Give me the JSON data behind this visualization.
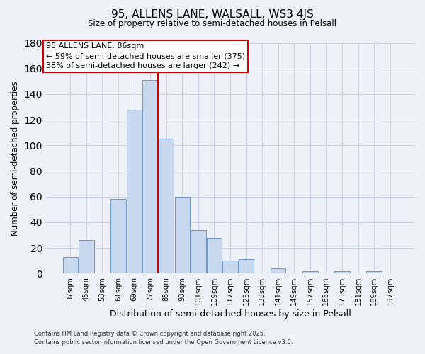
{
  "title": "95, ALLENS LANE, WALSALL, WS3 4JS",
  "subtitle": "Size of property relative to semi-detached houses in Pelsall",
  "xlabel": "Distribution of semi-detached houses by size in Pelsall",
  "ylabel": "Number of semi-detached properties",
  "categories": [
    "37sqm",
    "45sqm",
    "53sqm",
    "61sqm",
    "69sqm",
    "77sqm",
    "85sqm",
    "93sqm",
    "101sqm",
    "109sqm",
    "117sqm",
    "125sqm",
    "133sqm",
    "141sqm",
    "149sqm",
    "157sqm",
    "165sqm",
    "173sqm",
    "181sqm",
    "189sqm",
    "197sqm"
  ],
  "values": [
    13,
    26,
    0,
    58,
    128,
    151,
    105,
    60,
    34,
    28,
    10,
    11,
    0,
    4,
    0,
    2,
    0,
    2,
    0,
    2,
    0
  ],
  "bar_color": "#c8d8ef",
  "bar_edge_color": "#6b96c8",
  "highlight_index": 6,
  "highlight_line_color": "#cc0000",
  "ylim": [
    0,
    180
  ],
  "yticks": [
    0,
    20,
    40,
    60,
    80,
    100,
    120,
    140,
    160,
    180
  ],
  "annotation_line1": "95 ALLENS LANE: 86sqm",
  "annotation_line2": "← 59% of semi-detached houses are smaller (375)",
  "annotation_line3": "38% of semi-detached houses are larger (242) →",
  "annotation_box_edge": "#cc0000",
  "footer_line1": "Contains HM Land Registry data © Crown copyright and database right 2025.",
  "footer_line2": "Contains public sector information licensed under the Open Government Licence v3.0.",
  "background_color": "#eef2f8",
  "plot_bg_color": "#eef2f8",
  "grid_color": "#c8d0e0"
}
